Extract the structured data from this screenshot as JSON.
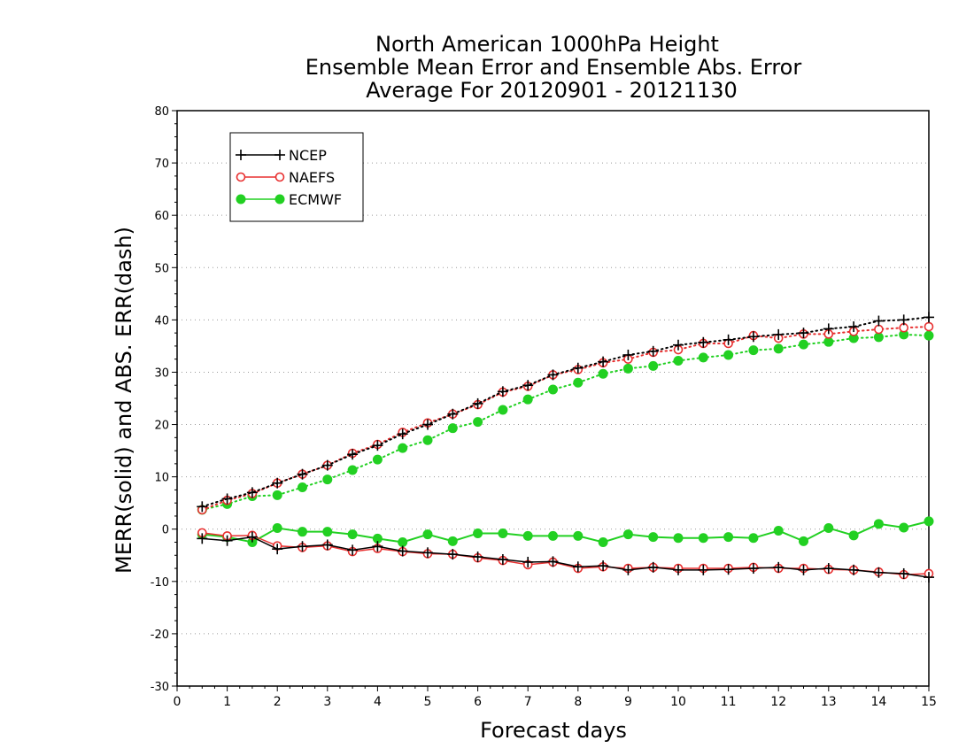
{
  "chart_data": {
    "type": "line",
    "title_lines": [
      "North American 1000hPa Height",
      "Ensemble Mean Error and Ensemble Abs. Error",
      "Average For 20120901 - 20121130"
    ],
    "xlabel": "Forecast days",
    "ylabel": "MERR(solid) and ABS. ERR(dash)",
    "xlim": [
      0,
      15
    ],
    "ylim": [
      -30,
      80
    ],
    "xticks": [
      0,
      1,
      2,
      3,
      4,
      5,
      6,
      7,
      8,
      9,
      10,
      11,
      12,
      13,
      14,
      15
    ],
    "yticks": [
      -30,
      -20,
      -10,
      0,
      10,
      20,
      30,
      40,
      50,
      60,
      70,
      80
    ],
    "grid": "dotted horizontal",
    "legend_position": "top-left",
    "x": [
      0.5,
      1,
      1.5,
      2,
      2.5,
      3,
      3.5,
      4,
      4.5,
      5,
      5.5,
      6,
      6.5,
      7,
      7.5,
      8,
      8.5,
      9,
      9.5,
      10,
      10.5,
      11,
      11.5,
      12,
      12.5,
      13,
      13.5,
      14,
      14.5,
      15
    ],
    "series": [
      {
        "name": "NCEP",
        "color": "#000000",
        "marker": "plus",
        "merr": [
          -1.8,
          -2.2,
          -1.5,
          -3.8,
          -3.3,
          -3.0,
          -4.0,
          -3.3,
          -4.2,
          -4.5,
          -4.8,
          -5.3,
          -5.8,
          -6.3,
          -6.2,
          -7.2,
          -7.0,
          -7.8,
          -7.3,
          -7.8,
          -7.8,
          -7.7,
          -7.5,
          -7.3,
          -7.8,
          -7.5,
          -7.8,
          -8.3,
          -8.5,
          -9.2
        ],
        "abs_err": [
          4.3,
          5.8,
          7.0,
          8.8,
          10.5,
          12.2,
          14.3,
          16.0,
          18.2,
          20.0,
          22.0,
          24.0,
          26.3,
          27.5,
          29.5,
          30.8,
          32.0,
          33.3,
          34.0,
          35.2,
          35.7,
          36.2,
          36.8,
          37.2,
          37.5,
          38.3,
          38.7,
          39.8,
          40.0,
          40.5
        ]
      },
      {
        "name": "NAEFS",
        "color": "#e83030",
        "marker": "open-circle",
        "merr": [
          -0.7,
          -1.3,
          -1.2,
          -3.2,
          -3.5,
          -3.2,
          -4.3,
          -3.7,
          -4.3,
          -4.7,
          -4.8,
          -5.5,
          -6.0,
          -6.8,
          -6.3,
          -7.5,
          -7.2,
          -7.5,
          -7.3,
          -7.5,
          -7.5,
          -7.5,
          -7.3,
          -7.5,
          -7.5,
          -7.7,
          -7.8,
          -8.2,
          -8.7,
          -8.5
        ],
        "abs_err": [
          3.7,
          5.5,
          6.8,
          8.8,
          10.5,
          12.2,
          14.5,
          16.2,
          18.5,
          20.3,
          22.0,
          23.8,
          26.2,
          27.3,
          29.5,
          30.5,
          31.8,
          32.5,
          33.8,
          34.3,
          35.5,
          35.5,
          37.0,
          36.5,
          37.3,
          37.3,
          37.8,
          38.2,
          38.5,
          38.7
        ]
      },
      {
        "name": "ECMWF",
        "color": "#22d022",
        "marker": "filled-circle",
        "merr": [
          -1.0,
          -1.5,
          -2.5,
          0.2,
          -0.5,
          -0.5,
          -1.0,
          -1.8,
          -2.5,
          -1.0,
          -2.3,
          -0.8,
          -0.8,
          -1.3,
          -1.3,
          -1.3,
          -2.5,
          -1.0,
          -1.5,
          -1.7,
          -1.7,
          -1.5,
          -1.7,
          -0.3,
          -2.3,
          0.2,
          -1.2,
          1.0,
          0.3,
          1.5
        ],
        "abs_err": [
          3.7,
          4.8,
          6.3,
          6.5,
          8.0,
          9.5,
          11.3,
          13.3,
          15.5,
          17.0,
          19.3,
          20.5,
          22.8,
          24.8,
          26.7,
          28.0,
          29.7,
          30.7,
          31.2,
          32.2,
          32.8,
          33.3,
          34.2,
          34.5,
          35.3,
          35.8,
          36.5,
          36.7,
          37.2,
          37.0
        ]
      }
    ]
  }
}
